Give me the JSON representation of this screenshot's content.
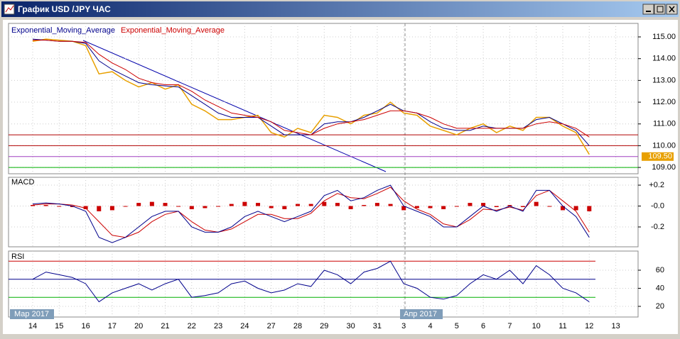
{
  "window": {
    "title": "График USD /JPY ЧАС"
  },
  "x": {
    "categories": [
      "14",
      null,
      "15",
      null,
      "16",
      null,
      "17",
      null,
      "20",
      null,
      "21",
      null,
      "22",
      null,
      "23",
      null,
      "24",
      null,
      "27",
      null,
      "28",
      null,
      "29",
      null,
      "30",
      null,
      "31",
      null,
      "3",
      null,
      "4",
      null,
      "5",
      null,
      "6",
      null,
      "7",
      null,
      "10",
      null,
      "11",
      null,
      "12",
      null,
      "13",
      null
    ],
    "month_labels": [
      "Мар 2017",
      "Апр 2017"
    ]
  },
  "price": {
    "ylim": [
      108.71,
      115.62
    ],
    "yticks": [
      {
        "value": 115,
        "label": "115.00"
      },
      {
        "value": 114,
        "label": "114.00"
      },
      {
        "value": 113,
        "label": "113.00"
      },
      {
        "value": 112,
        "label": "112.00"
      },
      {
        "value": 111,
        "label": "111.00"
      },
      {
        "value": 110,
        "label": "110.00"
      },
      {
        "value": 109,
        "label": "109.00"
      }
    ],
    "close": {
      "color": "#e8a000",
      "values": [
        114.8,
        114.9,
        114.85,
        114.8,
        114.6,
        113.3,
        113.4,
        113.0,
        112.7,
        112.9,
        112.6,
        112.8,
        111.9,
        111.6,
        111.2,
        111.2,
        111.3,
        111.4,
        110.6,
        110.4,
        110.8,
        110.6,
        111.4,
        111.3,
        111.0,
        111.4,
        111.5,
        112.0,
        111.5,
        111.4,
        110.9,
        110.7,
        110.5,
        110.8,
        111.0,
        110.6,
        110.9,
        110.7,
        111.3,
        111.3,
        110.9,
        110.6,
        109.6,
        null,
        null,
        null
      ]
    },
    "series": [
      {
        "name": "Exponential_Moving_Average",
        "color": "#00008b",
        "values": [
          114.9,
          114.85,
          114.8,
          114.8,
          114.7,
          113.9,
          113.5,
          113.2,
          112.9,
          112.8,
          112.75,
          112.7,
          112.3,
          111.9,
          111.5,
          111.3,
          111.3,
          111.3,
          110.9,
          110.5,
          110.5,
          110.5,
          111.0,
          111.1,
          111.1,
          111.3,
          111.6,
          111.9,
          111.6,
          111.5,
          111.1,
          110.8,
          110.7,
          110.7,
          110.9,
          110.8,
          110.8,
          110.8,
          111.2,
          111.3,
          111.0,
          110.7,
          110.0,
          null,
          null,
          null
        ]
      },
      {
        "name": "Exponential_Moving_Average",
        "color": "#cc0000",
        "values": [
          114.85,
          114.85,
          114.8,
          114.8,
          114.75,
          114.2,
          113.8,
          113.5,
          113.1,
          112.9,
          112.8,
          112.8,
          112.5,
          112.1,
          111.8,
          111.5,
          111.4,
          111.3,
          111.1,
          110.7,
          110.6,
          110.5,
          110.8,
          111.0,
          111.1,
          111.2,
          111.4,
          111.6,
          111.6,
          111.5,
          111.3,
          111.0,
          110.8,
          110.8,
          110.8,
          110.8,
          110.8,
          110.8,
          111.0,
          111.1,
          111.0,
          110.8,
          110.4,
          null,
          null,
          null
        ]
      }
    ],
    "levels": [
      {
        "value": 110.5,
        "color": "#b00000"
      },
      {
        "value": 110.0,
        "color": "#b00000"
      },
      {
        "value": 109.5,
        "color": "#a040c0"
      },
      {
        "value": 109.0,
        "color": "#00b000"
      }
    ],
    "last_price": {
      "value": 109.5,
      "label": "109.50",
      "color": "#e8a000"
    }
  },
  "macd": {
    "title": "MACD",
    "ylim": [
      -0.39,
      0.275
    ],
    "yticks": [
      {
        "value": 0.2,
        "label": "+0.2"
      },
      {
        "value": 0,
        "label": "-0.0"
      },
      {
        "value": -0.2,
        "label": "-0.2"
      }
    ],
    "histogram": {
      "color": "#cc0000",
      "values": [
        0.01,
        0.01,
        0,
        -0.01,
        -0.03,
        -0.05,
        -0.04,
        0,
        0.03,
        0.04,
        0.03,
        0,
        -0.03,
        -0.02,
        0,
        0.02,
        0.04,
        0.03,
        -0.02,
        -0.03,
        0.02,
        0.02,
        0.04,
        0.03,
        -0.03,
        0.01,
        0.03,
        0.02,
        -0.04,
        -0.02,
        -0.02,
        -0.03,
        0,
        0.03,
        0.03,
        -0.01,
        0.01,
        -0.01,
        0.04,
        0,
        -0.04,
        -0.04,
        -0.05,
        null,
        null,
        null
      ]
    },
    "macd_line": {
      "color": "#00008b",
      "values": [
        0.02,
        0.03,
        0.02,
        0.0,
        -0.05,
        -0.3,
        -0.35,
        -0.3,
        -0.2,
        -0.1,
        -0.05,
        -0.05,
        -0.2,
        -0.25,
        -0.25,
        -0.2,
        -0.1,
        -0.05,
        -0.1,
        -0.15,
        -0.1,
        -0.05,
        0.1,
        0.15,
        0.05,
        0.08,
        0.15,
        0.2,
        0.0,
        -0.05,
        -0.1,
        -0.2,
        -0.2,
        -0.1,
        0.0,
        -0.05,
        0.0,
        -0.05,
        0.15,
        0.15,
        0.0,
        -0.1,
        -0.3,
        null,
        null,
        null
      ]
    },
    "signal_line": {
      "color": "#cc0000",
      "values": [
        0.01,
        0.02,
        0.02,
        0.01,
        -0.02,
        -0.15,
        -0.28,
        -0.3,
        -0.25,
        -0.15,
        -0.08,
        -0.05,
        -0.15,
        -0.23,
        -0.25,
        -0.22,
        -0.15,
        -0.08,
        -0.08,
        -0.12,
        -0.12,
        -0.07,
        0.05,
        0.12,
        0.08,
        0.07,
        0.12,
        0.18,
        0.05,
        -0.03,
        -0.08,
        -0.17,
        -0.2,
        -0.13,
        -0.03,
        -0.04,
        -0.01,
        -0.04,
        0.1,
        0.15,
        0.05,
        -0.05,
        -0.25,
        null,
        null,
        null
      ]
    }
  },
  "rsi": {
    "title": "RSI",
    "ylim": [
      8.2,
      81.2
    ],
    "yticks": [
      60,
      40,
      20
    ],
    "line": {
      "color": "#00008b",
      "values": [
        50,
        58,
        55,
        52,
        45,
        25,
        35,
        40,
        45,
        38,
        45,
        50,
        30,
        32,
        35,
        45,
        48,
        40,
        35,
        38,
        45,
        42,
        60,
        55,
        45,
        58,
        62,
        70,
        45,
        40,
        30,
        28,
        32,
        45,
        55,
        50,
        60,
        45,
        65,
        55,
        40,
        35,
        25,
        null,
        null,
        null
      ]
    },
    "levels": [
      {
        "value": 70,
        "color": "#cc0000"
      },
      {
        "value": 50,
        "color": "#00008b"
      },
      {
        "value": 30,
        "color": "#00b000"
      }
    ]
  }
}
